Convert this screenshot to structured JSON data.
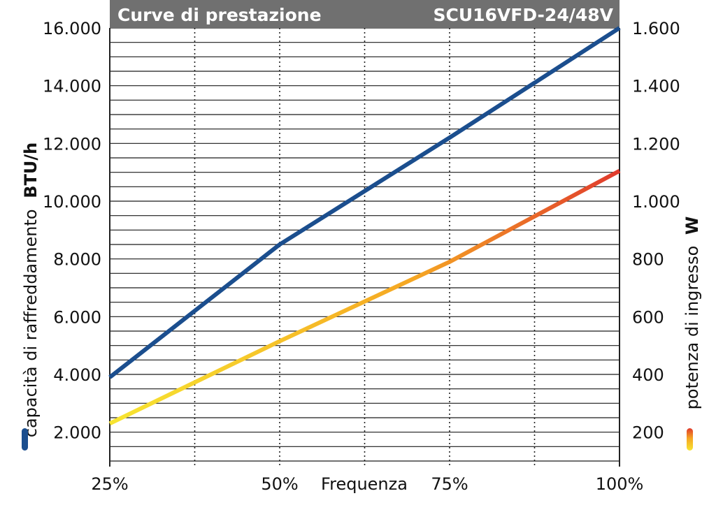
{
  "chart_data": {
    "type": "line",
    "title": "Curve di prestazione",
    "model": "SCU16VFD-24/48V",
    "xlabel": "Frequenza",
    "x": [
      "25%",
      "50%",
      "75%",
      "100%"
    ],
    "x_values": [
      25,
      50,
      75,
      100
    ],
    "xlim": [
      25,
      100
    ],
    "y_left": {
      "label": "capacità di raffreddamento",
      "unit": "BTU/h",
      "ylim": [
        1000,
        16000
      ],
      "ticks": [
        2000,
        4000,
        6000,
        8000,
        10000,
        12000,
        14000,
        16000
      ],
      "tick_labels": [
        "2.000",
        "4.000",
        "6.000",
        "8.000",
        "10.000",
        "12.000",
        "14.000",
        "16.000"
      ]
    },
    "y_right": {
      "label": "potenza di ingresso",
      "unit": "W",
      "ylim": [
        100,
        1600
      ],
      "ticks": [
        200,
        400,
        600,
        800,
        1000,
        1200,
        1400,
        1600
      ],
      "tick_labels": [
        "200",
        "400",
        "600",
        "800",
        "1.000",
        "1.200",
        "1.400",
        "1.600"
      ]
    },
    "series": [
      {
        "axis": "left",
        "color": "#1b4e8e",
        "x": [
          25,
          50,
          75,
          100
        ],
        "values": [
          3900,
          8500,
          12200,
          16000
        ]
      },
      {
        "axis": "right",
        "gradient": [
          "#f7e531",
          "#f5a623",
          "#e03a2d"
        ],
        "x": [
          25,
          50,
          75,
          100
        ],
        "values": [
          230,
          515,
          790,
          1105
        ]
      }
    ],
    "grid": true
  }
}
